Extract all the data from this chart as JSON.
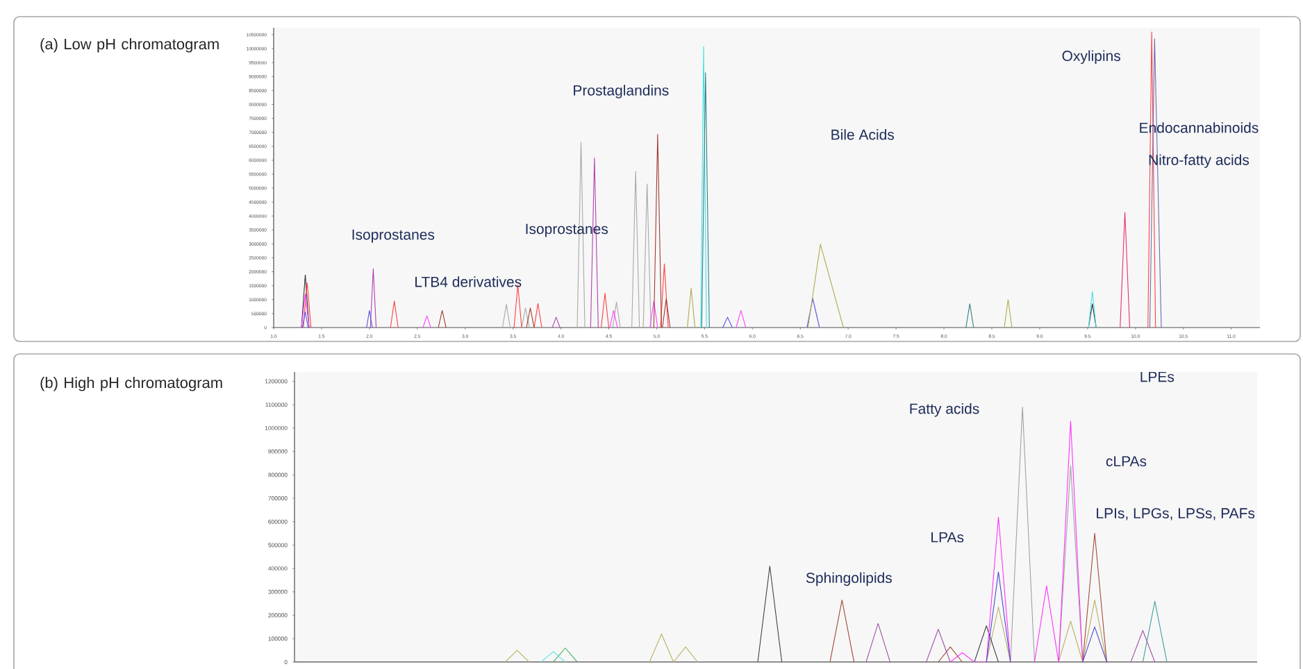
{
  "chart_data": [
    {
      "type": "line",
      "title": "(a) Low pH chromatogram",
      "xlim": [
        1.0,
        11.3
      ],
      "ylim": [
        0,
        10750000
      ],
      "xticks": [
        {
          "value": 1.0,
          "label": "1.0"
        },
        {
          "value": 1.5,
          "label": "1.5"
        },
        {
          "value": 2.0,
          "label": "2.0"
        },
        {
          "value": 2.5,
          "label": "2.5"
        },
        {
          "value": 3.0,
          "label": "3.0"
        },
        {
          "value": 3.5,
          "label": "3.5"
        },
        {
          "value": 4.0,
          "label": "4.0"
        },
        {
          "value": 4.5,
          "label": "4.5"
        },
        {
          "value": 5.0,
          "label": "5.0"
        },
        {
          "value": 5.5,
          "label": "5.5"
        },
        {
          "value": 6.0,
          "label": "6.0"
        },
        {
          "value": 6.5,
          "label": "6.5"
        },
        {
          "value": 7.0,
          "label": "7.0"
        },
        {
          "value": 7.5,
          "label": "7.5"
        },
        {
          "value": 8.0,
          "label": "8.0"
        },
        {
          "value": 8.5,
          "label": "8.5"
        },
        {
          "value": 9.0,
          "label": "9.0"
        },
        {
          "value": 9.5,
          "label": "9.5"
        },
        {
          "value": 10.0,
          "label": "10.0"
        },
        {
          "value": 10.5,
          "label": "10.5"
        },
        {
          "value": 11.0,
          "label": "11.0"
        }
      ],
      "yticks": [
        0,
        500000,
        1000000,
        1500000,
        2000000,
        2500000,
        3000000,
        3500000,
        4000000,
        4500000,
        5000000,
        5500000,
        6000000,
        6500000,
        7000000,
        7500000,
        8000000,
        8500000,
        9000000,
        9500000,
        10000000,
        10500000
      ],
      "annotations": [
        "Isoprostanes",
        "LTB4 derivatives",
        "Isoprostanes",
        "Prostaglandins",
        "Bile Acids",
        "Oxylipins",
        "Endocannabinoids",
        "Nitro-fatty acids"
      ],
      "series": [
        {
          "color": "#303030",
          "x": [
            1.29,
            1.33,
            1.37,
            5.0,
            9.51,
            9.55,
            9.59
          ],
          "values": [
            0,
            1890000,
            0,
            null,
            0,
            850000,
            0
          ]
        },
        {
          "color": "#a8a8a8",
          "x": [
            3.39,
            3.43,
            3.47,
            3.53,
            3.59,
            3.63,
            3.67,
            3.9,
            4.17,
            4.21,
            4.25,
            4.4,
            4.54,
            4.58,
            4.62,
            4.68,
            4.74,
            4.78,
            4.82,
            4.84,
            4.86,
            4.9,
            4.94
          ],
          "values": [
            0,
            830000,
            0,
            null,
            0,
            700000,
            0,
            null,
            0,
            6650000,
            0,
            null,
            0,
            910000,
            0,
            null,
            0,
            5600000,
            0,
            null,
            0,
            5150000,
            0
          ]
        },
        {
          "color": "#ff4040",
          "x": [
            1.31,
            1.35,
            1.39,
            1.8,
            2.22,
            2.26,
            2.3,
            2.9,
            3.51,
            3.55,
            3.59,
            3.65,
            3.72,
            3.76,
            3.8,
            4.1,
            4.42,
            4.46,
            4.5,
            4.8,
            5.04,
            5.08,
            5.12,
            7.0,
            10.13,
            10.17,
            10.21
          ],
          "values": [
            0,
            1610000,
            0,
            null,
            0,
            950000,
            0,
            null,
            0,
            1530000,
            0,
            null,
            0,
            860000,
            0,
            null,
            0,
            1230000,
            0,
            null,
            0,
            2280000,
            0,
            null,
            0,
            10600000,
            0
          ]
        },
        {
          "color": "#e8306a",
          "x": [
            9.84,
            9.89,
            9.94
          ],
          "values": [
            0,
            4130000,
            0
          ]
        },
        {
          "color": "#ff40ff",
          "x": [
            1.29,
            1.33,
            1.37,
            2.0,
            2.56,
            2.6,
            2.64,
            3.5,
            4.51,
            4.55,
            4.59,
            4.8,
            4.93,
            4.97,
            5.01,
            5.4,
            5.83,
            5.88,
            5.93
          ],
          "values": [
            0,
            1200000,
            0,
            null,
            0,
            420000,
            0,
            null,
            0,
            610000,
            0,
            null,
            0,
            950000,
            0,
            null,
            0,
            610000,
            0
          ]
        },
        {
          "color": "#b040b0",
          "x": [
            2.01,
            2.04,
            2.07,
            3.0,
            3.91,
            3.95,
            3.99,
            4.15,
            4.31,
            4.35,
            4.39
          ],
          "values": [
            0,
            2110000,
            0,
            null,
            0,
            370000,
            0,
            null,
            0,
            6080000,
            0
          ]
        },
        {
          "color": "#5050e0",
          "x": [
            1.3,
            1.33,
            1.36,
            1.6,
            1.97,
            2.0,
            2.03,
            4.0,
            5.69,
            5.74,
            5.79,
            6.2,
            6.57,
            6.63,
            6.7
          ],
          "values": [
            0,
            560000,
            0,
            null,
            0,
            610000,
            0,
            null,
            0,
            370000,
            0,
            null,
            0,
            1040000,
            0
          ]
        },
        {
          "color": "#6a6ab0",
          "x": [
            10.15,
            10.2,
            10.27
          ],
          "values": [
            0,
            10350000,
            0
          ]
        },
        {
          "color": "#40e0e8",
          "x": [
            5.46,
            5.49,
            5.52,
            7.5,
            9.51,
            9.55,
            9.59
          ],
          "values": [
            0,
            10080000,
            0,
            null,
            0,
            1290000,
            0
          ]
        },
        {
          "color": "#2f7f80",
          "x": [
            5.47,
            5.51,
            5.55,
            7.0,
            8.23,
            8.27,
            8.31
          ],
          "values": [
            0,
            9140000,
            0,
            null,
            0,
            850000,
            0
          ]
        },
        {
          "color": "#b0a850",
          "x": [
            5.32,
            5.36,
            5.4,
            6.0,
            6.58,
            6.71,
            6.95,
            7.8,
            8.63,
            8.67,
            8.71
          ],
          "values": [
            0,
            1410000,
            0,
            null,
            0,
            2990000,
            0,
            null,
            0,
            1000000,
            0
          ]
        },
        {
          "color": "#a03a30",
          "x": [
            2.72,
            2.76,
            2.8,
            3.2,
            3.64,
            3.68,
            3.72,
            4.3,
            4.97,
            5.01,
            5.05,
            5.055,
            5.06,
            5.1,
            5.14
          ],
          "values": [
            0,
            610000,
            0,
            null,
            0,
            700000,
            0,
            null,
            0,
            6930000,
            0,
            null,
            0,
            1030000,
            0
          ]
        }
      ]
    },
    {
      "type": "line",
      "title": "(b) High pH chromatogram",
      "tick_labels": "y",
      "ylim": [
        0,
        1240000
      ],
      "yticks": [
        0,
        100000,
        200000,
        300000,
        400000,
        500000,
        600000,
        700000,
        800000,
        900000,
        1000000,
        1100000,
        1200000
      ],
      "categories": [
        null,
        null,
        null,
        null,
        null,
        null,
        null,
        null,
        null,
        null,
        null,
        null,
        null,
        null,
        null,
        null,
        null,
        null,
        null,
        null,
        null,
        null,
        null,
        null,
        null,
        null,
        null,
        null,
        null,
        null,
        null,
        null,
        null,
        null,
        null,
        null,
        null,
        null,
        null,
        null,
        null,
        null,
        null,
        null,
        null,
        null,
        null,
        null,
        null,
        null,
        null,
        null,
        null,
        null,
        null,
        null,
        null,
        null,
        null,
        null,
        null,
        null,
        null,
        null,
        null,
        null,
        null,
        null,
        null,
        null,
        null,
        null,
        null,
        null,
        null,
        null,
        null,
        null,
        null,
        null
      ],
      "annotations": [
        "LPEs",
        "Fatty acids",
        "cLPAs",
        "LPIs, LPGs, LPSs, PAFs",
        "LPAs",
        "Sphingolipids"
      ],
      "series": [
        {
          "color": "#b8b060",
          "values": [
            null,
            null,
            null,
            null,
            null,
            null,
            null,
            null,
            null,
            null,
            null,
            null,
            null,
            null,
            null,
            null,
            null,
            0,
            50000,
            0,
            null,
            null,
            null,
            null,
            null,
            null,
            null,
            null,
            null,
            0,
            120000,
            0,
            65000,
            0,
            null,
            null,
            null,
            null,
            null,
            null,
            null,
            null,
            null,
            null,
            null,
            null,
            null,
            null,
            null,
            null,
            null,
            null,
            null,
            null,
            null,
            null,
            null,
            0,
            235000,
            0,
            null,
            null,
            null,
            0,
            175000,
            0,
            265000,
            0,
            null,
            null,
            null,
            null,
            null,
            null,
            null,
            null,
            null,
            null,
            null,
            null
          ]
        },
        {
          "color": "#40b060",
          "values": [
            null,
            null,
            null,
            null,
            null,
            null,
            null,
            null,
            null,
            null,
            null,
            null,
            null,
            null,
            null,
            null,
            null,
            null,
            null,
            null,
            null,
            0,
            60000,
            0,
            null,
            null,
            null,
            null,
            null,
            null,
            null,
            null,
            null,
            null,
            null,
            null,
            null,
            null,
            null,
            null,
            null,
            null,
            null,
            null,
            null,
            null,
            null,
            null,
            null,
            null,
            null,
            null,
            null,
            null,
            null,
            null,
            null,
            null,
            null,
            null,
            null,
            null,
            null,
            null,
            null,
            null,
            null,
            null,
            null,
            null,
            null,
            null,
            null,
            null,
            null,
            null,
            null,
            null,
            null,
            null
          ]
        },
        {
          "color": "#60e0e0",
          "values": [
            null,
            null,
            null,
            null,
            null,
            null,
            null,
            null,
            null,
            null,
            null,
            null,
            null,
            null,
            null,
            null,
            null,
            null,
            null,
            null,
            0,
            45000,
            0,
            null,
            null,
            null,
            null,
            null,
            null,
            null,
            null,
            null,
            null,
            null,
            null,
            null,
            null,
            null,
            null,
            null,
            null,
            null,
            null,
            null,
            null,
            null,
            null,
            null,
            null,
            null,
            null,
            null,
            null,
            null,
            null,
            null,
            null,
            null,
            null,
            null,
            null,
            null,
            null,
            null,
            null,
            null,
            null,
            null,
            null,
            null,
            null,
            null,
            null,
            null,
            null,
            null,
            null,
            null,
            null,
            null
          ]
        },
        {
          "color": "#40a0a0",
          "values": [
            null,
            null,
            null,
            null,
            null,
            null,
            null,
            null,
            null,
            null,
            null,
            null,
            null,
            null,
            null,
            null,
            null,
            null,
            null,
            null,
            null,
            null,
            null,
            null,
            null,
            null,
            null,
            null,
            null,
            null,
            null,
            null,
            null,
            null,
            null,
            null,
            null,
            null,
            null,
            null,
            null,
            null,
            null,
            null,
            null,
            null,
            null,
            null,
            null,
            null,
            null,
            null,
            null,
            null,
            null,
            null,
            null,
            null,
            null,
            null,
            null,
            null,
            null,
            null,
            null,
            null,
            null,
            null,
            null,
            null,
            0,
            260000,
            0,
            null,
            null,
            null,
            null,
            null,
            null,
            null
          ]
        },
        {
          "color": "#404040",
          "values": [
            null,
            null,
            null,
            null,
            null,
            null,
            null,
            null,
            null,
            null,
            null,
            null,
            null,
            null,
            null,
            null,
            null,
            null,
            null,
            null,
            null,
            null,
            null,
            null,
            null,
            null,
            null,
            null,
            null,
            null,
            null,
            null,
            null,
            null,
            null,
            null,
            null,
            null,
            0,
            410000,
            0,
            null,
            null,
            null,
            null,
            null,
            null,
            null,
            null,
            null,
            null,
            null,
            null,
            null,
            null,
            null,
            0,
            155000,
            0,
            null,
            null,
            null,
            null,
            null,
            null,
            null,
            null,
            null,
            null,
            null,
            null,
            null,
            null,
            null,
            null,
            null,
            null,
            null,
            null,
            null
          ]
        },
        {
          "color": "#a0a0a0",
          "values": [
            null,
            null,
            null,
            null,
            null,
            null,
            null,
            null,
            null,
            null,
            null,
            null,
            null,
            null,
            null,
            null,
            null,
            null,
            null,
            null,
            null,
            null,
            null,
            null,
            null,
            null,
            null,
            null,
            null,
            null,
            null,
            null,
            null,
            null,
            null,
            null,
            null,
            null,
            null,
            null,
            null,
            null,
            null,
            null,
            null,
            null,
            null,
            null,
            null,
            null,
            null,
            null,
            null,
            null,
            null,
            null,
            null,
            null,
            null,
            0,
            1090000,
            0,
            null,
            0,
            840000,
            0,
            null,
            null,
            null,
            null,
            null,
            null,
            null,
            null,
            null,
            null,
            null,
            null,
            null,
            null
          ]
        },
        {
          "color": "#a04838",
          "values": [
            null,
            null,
            null,
            null,
            null,
            null,
            null,
            null,
            null,
            null,
            null,
            null,
            null,
            null,
            null,
            null,
            null,
            null,
            null,
            null,
            null,
            null,
            null,
            null,
            null,
            null,
            null,
            null,
            null,
            null,
            null,
            null,
            null,
            null,
            null,
            null,
            null,
            null,
            null,
            null,
            null,
            null,
            null,
            null,
            0,
            265000,
            0,
            null,
            null,
            null,
            null,
            null,
            null,
            0,
            65000,
            0,
            null,
            null,
            null,
            null,
            null,
            null,
            null,
            null,
            null,
            0,
            550000,
            0,
            null,
            null,
            null,
            null,
            null,
            null,
            null,
            null,
            null,
            null,
            null,
            null
          ]
        },
        {
          "color": "#a050a8",
          "values": [
            null,
            null,
            null,
            null,
            null,
            null,
            null,
            null,
            null,
            null,
            null,
            null,
            null,
            null,
            null,
            null,
            null,
            null,
            null,
            null,
            null,
            null,
            null,
            null,
            null,
            null,
            null,
            null,
            null,
            null,
            null,
            null,
            null,
            null,
            null,
            null,
            null,
            null,
            null,
            null,
            null,
            null,
            null,
            null,
            null,
            null,
            null,
            0,
            165000,
            0,
            null,
            null,
            0,
            140000,
            0,
            null,
            null,
            null,
            null,
            null,
            null,
            null,
            null,
            null,
            null,
            null,
            null,
            null,
            null,
            0,
            135000,
            0,
            null,
            null,
            null,
            null,
            null,
            null,
            null,
            null
          ]
        },
        {
          "color": "#ff30ff",
          "values": [
            null,
            null,
            null,
            null,
            null,
            null,
            null,
            null,
            null,
            null,
            null,
            null,
            null,
            null,
            null,
            null,
            null,
            null,
            null,
            null,
            null,
            null,
            null,
            null,
            null,
            null,
            null,
            null,
            null,
            null,
            null,
            null,
            null,
            null,
            null,
            null,
            null,
            null,
            null,
            null,
            null,
            null,
            null,
            null,
            null,
            null,
            null,
            null,
            null,
            null,
            null,
            null,
            null,
            null,
            0,
            40000,
            0,
            0,
            620000,
            0,
            null,
            0,
            325000,
            0,
            1030000,
            0,
            null,
            null,
            null,
            null,
            null,
            null,
            null,
            null,
            null,
            null,
            null,
            null,
            null,
            null
          ]
        },
        {
          "color": "#4848d0",
          "values": [
            null,
            null,
            null,
            null,
            null,
            null,
            null,
            null,
            null,
            null,
            null,
            null,
            null,
            null,
            null,
            null,
            null,
            null,
            null,
            null,
            null,
            null,
            null,
            null,
            null,
            null,
            null,
            null,
            null,
            null,
            null,
            null,
            null,
            null,
            null,
            null,
            null,
            null,
            null,
            null,
            null,
            null,
            null,
            null,
            null,
            null,
            null,
            null,
            null,
            null,
            null,
            null,
            null,
            null,
            null,
            null,
            null,
            0,
            385000,
            0,
            null,
            null,
            null,
            null,
            null,
            0,
            150000,
            0,
            null,
            null,
            null,
            null,
            null,
            null,
            null,
            null,
            null,
            null,
            null,
            null
          ]
        }
      ]
    }
  ]
}
